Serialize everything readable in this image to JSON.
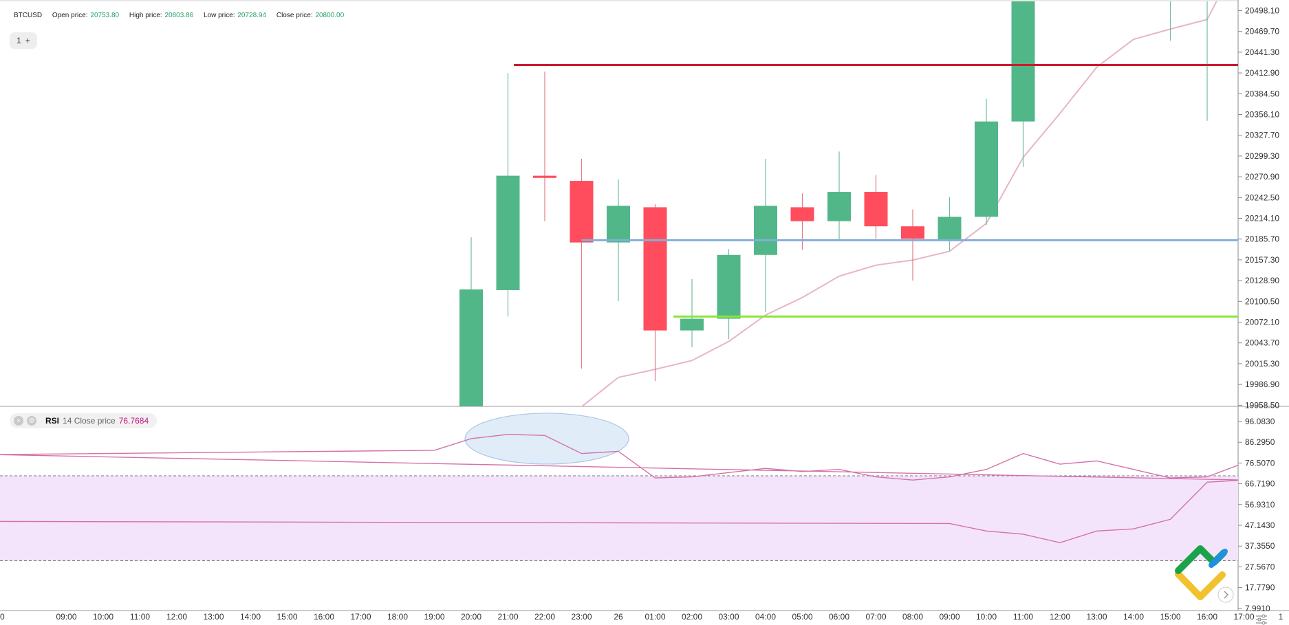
{
  "legend": {
    "symbol": "BTCUSD",
    "open_label": "Open price:",
    "open_value": "20753.80",
    "high_label": "High price:",
    "high_value": "20803.86",
    "low_label": "Low price:",
    "low_value": "20728.94",
    "close_label": "Close price:",
    "close_value": "20800.00"
  },
  "layer_pill": {
    "count": "1",
    "add_icon": "plus-icon"
  },
  "rsi_legend": {
    "name": "RSI",
    "params": "14 Close price",
    "value": "76.7684",
    "icons": [
      "close-icon",
      "gear-icon"
    ]
  },
  "colors": {
    "up": "#52b788",
    "down": "#ff4d5e",
    "ma": "#e8b4c8",
    "rsi_line": "#d670a8",
    "rsi_band": "#f3e4fb",
    "red_line": "#cc1a2e",
    "blue_line": "#82aedb",
    "green_line": "#8be43a",
    "ellipse": "#bcd6ef"
  },
  "chart_data": [
    {
      "type": "candlestick",
      "title": "BTCUSD",
      "ylim": [
        19958.5,
        20515
      ],
      "y_ticks": [
        "20498.10",
        "20469.70",
        "20441.30",
        "20412.90",
        "20384.50",
        "20356.10",
        "20327.70",
        "20299.30",
        "20270.90",
        "20242.50",
        "20214.10",
        "20185.70",
        "20157.30",
        "20128.90",
        "20100.50",
        "20072.10",
        "20043.70",
        "20015.30",
        "19986.90",
        "19958.50"
      ],
      "x_ticks": [
        "0",
        "09:00",
        "10:00",
        "11:00",
        "12:00",
        "13:00",
        "14:00",
        "15:00",
        "16:00",
        "17:00",
        "18:00",
        "19:00",
        "20:00",
        "21:00",
        "22:00",
        "23:00",
        "26",
        "01:00",
        "02:00",
        "03:00",
        "04:00",
        "05:00",
        "06:00",
        "07:00",
        "08:00",
        "09:00",
        "10:00",
        "11:00",
        "12:00",
        "13:00",
        "14:00",
        "15:00",
        "16:00",
        "17:00",
        "1"
      ],
      "candles": [
        {
          "time": "20:00",
          "open": 19958,
          "high": 20189,
          "low": 19958,
          "close": 20118
        },
        {
          "time": "21:00",
          "open": 20117,
          "high": 20413,
          "low": 20081,
          "close": 20273
        },
        {
          "time": "22:00",
          "open": 20273,
          "high": 20415,
          "low": 20211,
          "close": 20270
        },
        {
          "time": "23:00",
          "open": 20266,
          "high": 20296,
          "low": 20010,
          "close": 20182
        },
        {
          "time": "26",
          "open": 20182,
          "high": 20268,
          "low": 20102,
          "close": 20232
        },
        {
          "time": "01:00",
          "open": 20230,
          "high": 20234,
          "low": 19993,
          "close": 20062
        },
        {
          "time": "02:00",
          "open": 20062,
          "high": 20132,
          "low": 20039,
          "close": 20078
        },
        {
          "time": "03:00",
          "open": 20078,
          "high": 20173,
          "low": 20050,
          "close": 20165
        },
        {
          "time": "04:00",
          "open": 20165,
          "high": 20296,
          "low": 20087,
          "close": 20232
        },
        {
          "time": "05:00",
          "open": 20230,
          "high": 20249,
          "low": 20172,
          "close": 20211
        },
        {
          "time": "06:00",
          "open": 20211,
          "high": 20306,
          "low": 20185,
          "close": 20251
        },
        {
          "time": "07:00",
          "open": 20251,
          "high": 20274,
          "low": 20187,
          "close": 20204
        },
        {
          "time": "08:00",
          "open": 20204,
          "high": 20227,
          "low": 20130,
          "close": 20187
        },
        {
          "time": "09:00",
          "open": 20186,
          "high": 20244,
          "low": 20170,
          "close": 20217
        },
        {
          "time": "10:00",
          "open": 20217,
          "high": 20378,
          "low": 20206,
          "close": 20347
        },
        {
          "time": "11:00",
          "open": 20347,
          "high": 20515,
          "low": 20285,
          "close": 20515
        },
        {
          "time": "15:00",
          "open": 20515,
          "high": 20515,
          "low": 20457,
          "close": 20515
        },
        {
          "time": "16:00",
          "open": 20515,
          "high": 20515,
          "low": 20348,
          "close": 20515
        }
      ],
      "moving_average": [
        {
          "time": "23:00",
          "value": 19958
        },
        {
          "time": "26",
          "value": 19998
        },
        {
          "time": "01:00",
          "value": 20009
        },
        {
          "time": "02:00",
          "value": 20021
        },
        {
          "time": "03:00",
          "value": 20047
        },
        {
          "time": "04:00",
          "value": 20083
        },
        {
          "time": "05:00",
          "value": 20107
        },
        {
          "time": "06:00",
          "value": 20136
        },
        {
          "time": "07:00",
          "value": 20151
        },
        {
          "time": "08:00",
          "value": 20158
        },
        {
          "time": "09:00",
          "value": 20170
        },
        {
          "time": "10:00",
          "value": 20208
        },
        {
          "time": "11:00",
          "value": 20298
        },
        {
          "time": "12:00",
          "value": 20358
        },
        {
          "time": "13:00",
          "value": 20421
        },
        {
          "time": "14:00",
          "value": 20459
        },
        {
          "time": "15:00",
          "value": 20473
        },
        {
          "time": "16:00",
          "value": 20486
        },
        {
          "time": "16:30",
          "value": 20515
        }
      ],
      "horizontal_lines": [
        {
          "name": "red",
          "value": 20424,
          "from": "22:00"
        },
        {
          "name": "blue",
          "value": 20185,
          "from": "23:00"
        },
        {
          "name": "green",
          "value": 20081,
          "from": "02:00"
        }
      ]
    },
    {
      "type": "line",
      "title": "RSI 14 Close price",
      "ylim": [
        7.791,
        101
      ],
      "y_ticks": [
        "96.0830",
        "86.2950",
        "76.5070",
        "66.7190",
        "56.9310",
        "47.1430",
        "37.3550",
        "27.5670",
        "17.7790",
        "7.9910"
      ],
      "band": [
        30.5,
        70.5
      ],
      "series": [
        {
          "name": "RSI",
          "points": [
            {
              "time": "08:00",
              "value": 49
            },
            {
              "time": "09:00",
              "value": 48
            },
            {
              "time": "10:00",
              "value": 44.5
            },
            {
              "time": "11:00",
              "value": 43
            },
            {
              "time": "12:00",
              "value": 39
            },
            {
              "time": "13:00",
              "value": 44.5
            },
            {
              "time": "14:00",
              "value": 45.5
            },
            {
              "time": "15:00",
              "value": 50
            },
            {
              "time": "16:00",
              "value": 67.5
            },
            {
              "time": "17:00",
              "value": 68.5
            },
            {
              "time": "18:00",
              "value": 80.5
            },
            {
              "time": "19:00",
              "value": 82.5
            },
            {
              "time": "20:00",
              "value": 88
            },
            {
              "time": "21:00",
              "value": 90
            },
            {
              "time": "22:00",
              "value": 89.5
            },
            {
              "time": "23:00",
              "value": 81
            },
            {
              "time": "26",
              "value": 82
            },
            {
              "time": "01:00",
              "value": 69.5
            },
            {
              "time": "02:00",
              "value": 70
            },
            {
              "time": "03:00",
              "value": 72
            },
            {
              "time": "04:00",
              "value": 74
            },
            {
              "time": "05:00",
              "value": 72.5
            },
            {
              "time": "06:00",
              "value": 73.5
            },
            {
              "time": "07:00",
              "value": 70
            },
            {
              "time": "08:00",
              "value": 68.5
            },
            {
              "time": "09:00",
              "value": 70
            },
            {
              "time": "10:00",
              "value": 73.5
            },
            {
              "time": "11:00",
              "value": 81
            },
            {
              "time": "12:00",
              "value": 76
            },
            {
              "time": "13:00",
              "value": 77.5
            },
            {
              "time": "14:00",
              "value": 73.5
            },
            {
              "time": "15:00",
              "value": 69.5
            },
            {
              "time": "16:00",
              "value": 70
            },
            {
              "time": "17:00",
              "value": 76.5
            },
            {
              "time": "17:45",
              "value": 76.7684
            }
          ]
        }
      ],
      "highlight_ellipse": {
        "from": "20:00",
        "to": "26"
      }
    }
  ],
  "logo_icon": "brand-logo-icon",
  "nav_icon": "chevron-right-icon",
  "settings_icon": "chart-settings-icon"
}
